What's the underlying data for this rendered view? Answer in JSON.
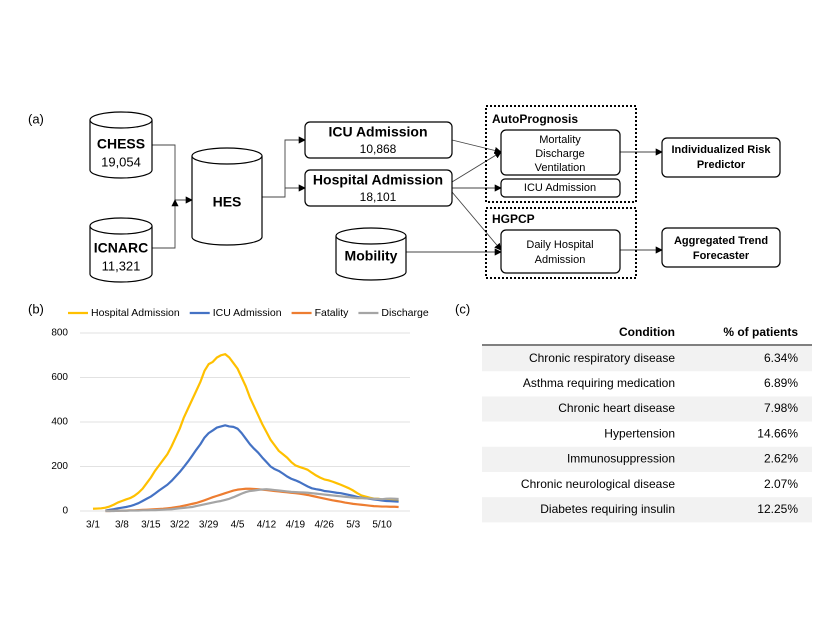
{
  "panels": {
    "a": "(a)",
    "b": "(b)",
    "c": "(c)"
  },
  "diagram": {
    "chess": {
      "label": "CHESS",
      "count": "19,054"
    },
    "icnarc": {
      "label": "ICNARC",
      "count": "11,321"
    },
    "hes": {
      "label": "HES"
    },
    "mobility": {
      "label": "Mobility"
    },
    "icu_admission": {
      "label": "ICU Admission",
      "count": "10,868"
    },
    "hospital_admission": {
      "label": "Hospital Admission",
      "count": "18,101"
    },
    "autoprognosis": {
      "title": "AutoPrognosis",
      "outcomes": [
        "Mortality",
        "Discharge",
        "Ventilation"
      ],
      "icu": "ICU Admission"
    },
    "hgpcp": {
      "title": "HGPCP",
      "daily": [
        "Daily Hospital",
        "Admission"
      ]
    },
    "risk_predictor": [
      "Individualized Risk",
      "Predictor"
    ],
    "trend_forecaster": [
      "Aggregated Trend",
      "Forecaster"
    ]
  },
  "chart_data": {
    "type": "line",
    "categories": [
      "3/1",
      null,
      null,
      null,
      null,
      null,
      null,
      "3/8",
      null,
      null,
      null,
      null,
      null,
      null,
      "3/15",
      null,
      null,
      null,
      null,
      null,
      null,
      "3/22",
      null,
      null,
      null,
      null,
      null,
      null,
      "3/29",
      null,
      null,
      null,
      null,
      null,
      null,
      "4/5",
      null,
      null,
      null,
      null,
      null,
      null,
      "4/12",
      null,
      null,
      null,
      null,
      null,
      null,
      "4/19",
      null,
      null,
      null,
      null,
      null,
      null,
      "4/26",
      null,
      null,
      null,
      null,
      null,
      null,
      "5/3",
      null,
      null,
      null,
      null,
      null,
      null,
      "5/10",
      null,
      null,
      null,
      null
    ],
    "series": [
      {
        "name": "Hospital Admission",
        "color": "#ffc000",
        "values": [
          10,
          11,
          12,
          15,
          20,
          28,
          38,
          45,
          52,
          58,
          68,
          82,
          100,
          125,
          150,
          180,
          205,
          230,
          255,
          290,
          330,
          370,
          420,
          460,
          500,
          540,
          580,
          630,
          660,
          670,
          690,
          700,
          705,
          690,
          665,
          640,
          600,
          560,
          510,
          470,
          430,
          390,
          355,
          320,
          295,
          270,
          255,
          240,
          220,
          205,
          198,
          192,
          185,
          172,
          160,
          150,
          142,
          138,
          132,
          125,
          118,
          110,
          102,
          92,
          80,
          70,
          65,
          60,
          56,
          55,
          52,
          50,
          48,
          47,
          46
        ]
      },
      {
        "name": "ICU Admission",
        "color": "#4472c4",
        "values": [
          null,
          null,
          null,
          2,
          5,
          8,
          12,
          15,
          18,
          22,
          28,
          35,
          45,
          55,
          65,
          78,
          92,
          105,
          118,
          135,
          155,
          175,
          198,
          222,
          248,
          275,
          300,
          330,
          350,
          362,
          375,
          380,
          385,
          380,
          378,
          370,
          350,
          325,
          300,
          280,
          262,
          240,
          220,
          200,
          188,
          180,
          168,
          155,
          145,
          138,
          130,
          120,
          110,
          102,
          98,
          95,
          90,
          88,
          85,
          82,
          80,
          76,
          72,
          68,
          63,
          60,
          57,
          55,
          52,
          50,
          47,
          45,
          44,
          43,
          42
        ]
      },
      {
        "name": "Fatality",
        "color": "#ed7d31",
        "values": [
          null,
          null,
          null,
          0,
          0,
          1,
          1,
          2,
          2,
          3,
          3,
          4,
          5,
          6,
          7,
          8,
          9,
          10,
          12,
          14,
          17,
          20,
          24,
          28,
          32,
          36,
          42,
          48,
          55,
          62,
          68,
          74,
          80,
          86,
          92,
          96,
          98,
          100,
          100,
          99,
          98,
          96,
          94,
          92,
          90,
          88,
          86,
          84,
          82,
          80,
          78,
          75,
          72,
          68,
          64,
          60,
          56,
          52,
          48,
          45,
          42,
          38,
          35,
          32,
          30,
          28,
          26,
          24,
          22,
          21,
          20,
          20,
          19,
          19,
          18
        ]
      },
      {
        "name": "Discharge",
        "color": "#a5a5a5",
        "values": [
          null,
          null,
          null,
          0,
          0,
          0,
          1,
          1,
          1,
          2,
          2,
          2,
          3,
          3,
          4,
          4,
          5,
          6,
          7,
          8,
          10,
          12,
          14,
          16,
          18,
          22,
          26,
          30,
          34,
          38,
          42,
          45,
          50,
          55,
          62,
          70,
          78,
          85,
          90,
          92,
          95,
          97,
          98,
          96,
          94,
          92,
          90,
          88,
          86,
          85,
          84,
          83,
          82,
          80,
          78,
          76,
          74,
          72,
          70,
          68,
          66,
          64,
          62,
          60,
          58,
          58,
          57,
          56,
          55,
          54,
          53,
          55,
          56,
          55,
          54
        ]
      }
    ],
    "ylim": [
      0,
      800
    ],
    "yticks": [
      0,
      200,
      400,
      600,
      800
    ],
    "grid": true,
    "legend": "top"
  },
  "table": {
    "header": [
      "Condition",
      "% of patients"
    ],
    "rows": [
      [
        "Chronic respiratory disease",
        "6.34%"
      ],
      [
        "Asthma requiring medication",
        "6.89%"
      ],
      [
        "Chronic heart disease",
        "7.98%"
      ],
      [
        "Hypertension",
        "14.66%"
      ],
      [
        "Immunosuppression",
        "2.62%"
      ],
      [
        "Chronic neurological disease",
        "2.07%"
      ],
      [
        "Diabetes requiring insulin",
        "12.25%"
      ]
    ]
  }
}
